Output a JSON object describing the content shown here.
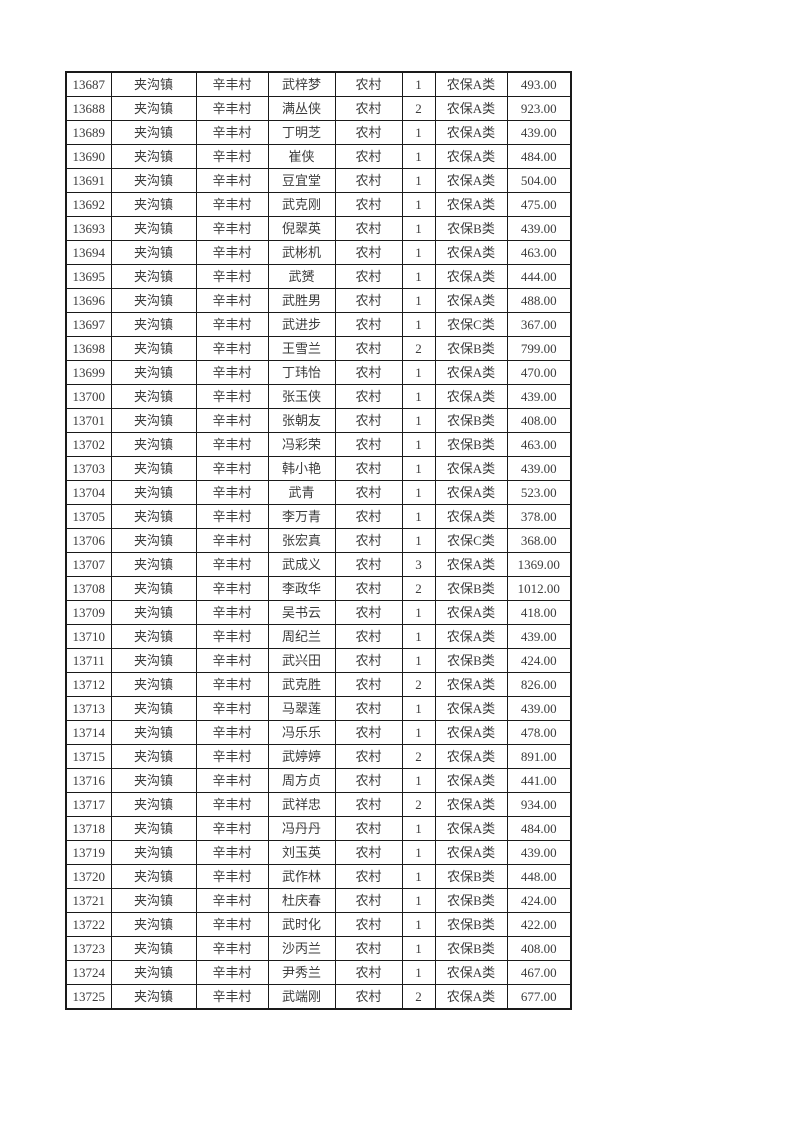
{
  "page": {
    "background": "#ffffff",
    "text_color": "#3b3b3b",
    "border_color": "#1a1a1a"
  },
  "table": {
    "columns": [
      {
        "key": "record-id"
      },
      {
        "key": "town"
      },
      {
        "key": "village"
      },
      {
        "key": "person-name"
      },
      {
        "key": "residence-type"
      },
      {
        "key": "person-count"
      },
      {
        "key": "insurance-category"
      },
      {
        "key": "amount"
      }
    ],
    "rows": [
      [
        "13687",
        "夹沟镇",
        "辛丰村",
        "武梓梦",
        "农村",
        "1",
        "农保A类",
        "493.00"
      ],
      [
        "13688",
        "夹沟镇",
        "辛丰村",
        "满丛侠",
        "农村",
        "2",
        "农保A类",
        "923.00"
      ],
      [
        "13689",
        "夹沟镇",
        "辛丰村",
        "丁明芝",
        "农村",
        "1",
        "农保A类",
        "439.00"
      ],
      [
        "13690",
        "夹沟镇",
        "辛丰村",
        "崔侠",
        "农村",
        "1",
        "农保A类",
        "484.00"
      ],
      [
        "13691",
        "夹沟镇",
        "辛丰村",
        "豆宜堂",
        "农村",
        "1",
        "农保A类",
        "504.00"
      ],
      [
        "13692",
        "夹沟镇",
        "辛丰村",
        "武克刚",
        "农村",
        "1",
        "农保A类",
        "475.00"
      ],
      [
        "13693",
        "夹沟镇",
        "辛丰村",
        "倪翠英",
        "农村",
        "1",
        "农保B类",
        "439.00"
      ],
      [
        "13694",
        "夹沟镇",
        "辛丰村",
        "武彬机",
        "农村",
        "1",
        "农保A类",
        "463.00"
      ],
      [
        "13695",
        "夹沟镇",
        "辛丰村",
        "武赟",
        "农村",
        "1",
        "农保A类",
        "444.00"
      ],
      [
        "13696",
        "夹沟镇",
        "辛丰村",
        "武胜男",
        "农村",
        "1",
        "农保A类",
        "488.00"
      ],
      [
        "13697",
        "夹沟镇",
        "辛丰村",
        "武进步",
        "农村",
        "1",
        "农保C类",
        "367.00"
      ],
      [
        "13698",
        "夹沟镇",
        "辛丰村",
        "王雪兰",
        "农村",
        "2",
        "农保B类",
        "799.00"
      ],
      [
        "13699",
        "夹沟镇",
        "辛丰村",
        "丁玮怡",
        "农村",
        "1",
        "农保A类",
        "470.00"
      ],
      [
        "13700",
        "夹沟镇",
        "辛丰村",
        "张玉侠",
        "农村",
        "1",
        "农保A类",
        "439.00"
      ],
      [
        "13701",
        "夹沟镇",
        "辛丰村",
        "张朝友",
        "农村",
        "1",
        "农保B类",
        "408.00"
      ],
      [
        "13702",
        "夹沟镇",
        "辛丰村",
        "冯彩荣",
        "农村",
        "1",
        "农保B类",
        "463.00"
      ],
      [
        "13703",
        "夹沟镇",
        "辛丰村",
        "韩小艳",
        "农村",
        "1",
        "农保A类",
        "439.00"
      ],
      [
        "13704",
        "夹沟镇",
        "辛丰村",
        "武青",
        "农村",
        "1",
        "农保A类",
        "523.00"
      ],
      [
        "13705",
        "夹沟镇",
        "辛丰村",
        "李万青",
        "农村",
        "1",
        "农保A类",
        "378.00"
      ],
      [
        "13706",
        "夹沟镇",
        "辛丰村",
        "张宏真",
        "农村",
        "1",
        "农保C类",
        "368.00"
      ],
      [
        "13707",
        "夹沟镇",
        "辛丰村",
        "武成义",
        "农村",
        "3",
        "农保A类",
        "1369.00"
      ],
      [
        "13708",
        "夹沟镇",
        "辛丰村",
        "李政华",
        "农村",
        "2",
        "农保B类",
        "1012.00"
      ],
      [
        "13709",
        "夹沟镇",
        "辛丰村",
        "吴书云",
        "农村",
        "1",
        "农保A类",
        "418.00"
      ],
      [
        "13710",
        "夹沟镇",
        "辛丰村",
        "周纪兰",
        "农村",
        "1",
        "农保A类",
        "439.00"
      ],
      [
        "13711",
        "夹沟镇",
        "辛丰村",
        "武兴田",
        "农村",
        "1",
        "农保B类",
        "424.00"
      ],
      [
        "13712",
        "夹沟镇",
        "辛丰村",
        "武克胜",
        "农村",
        "2",
        "农保A类",
        "826.00"
      ],
      [
        "13713",
        "夹沟镇",
        "辛丰村",
        "马翠莲",
        "农村",
        "1",
        "农保A类",
        "439.00"
      ],
      [
        "13714",
        "夹沟镇",
        "辛丰村",
        "冯乐乐",
        "农村",
        "1",
        "农保A类",
        "478.00"
      ],
      [
        "13715",
        "夹沟镇",
        "辛丰村",
        "武婷婷",
        "农村",
        "2",
        "农保A类",
        "891.00"
      ],
      [
        "13716",
        "夹沟镇",
        "辛丰村",
        "周方贞",
        "农村",
        "1",
        "农保A类",
        "441.00"
      ],
      [
        "13717",
        "夹沟镇",
        "辛丰村",
        "武祥忠",
        "农村",
        "2",
        "农保A类",
        "934.00"
      ],
      [
        "13718",
        "夹沟镇",
        "辛丰村",
        "冯丹丹",
        "农村",
        "1",
        "农保A类",
        "484.00"
      ],
      [
        "13719",
        "夹沟镇",
        "辛丰村",
        "刘玉英",
        "农村",
        "1",
        "农保A类",
        "439.00"
      ],
      [
        "13720",
        "夹沟镇",
        "辛丰村",
        "武作林",
        "农村",
        "1",
        "农保B类",
        "448.00"
      ],
      [
        "13721",
        "夹沟镇",
        "辛丰村",
        "杜庆春",
        "农村",
        "1",
        "农保B类",
        "424.00"
      ],
      [
        "13722",
        "夹沟镇",
        "辛丰村",
        "武时化",
        "农村",
        "1",
        "农保B类",
        "422.00"
      ],
      [
        "13723",
        "夹沟镇",
        "辛丰村",
        "沙丙兰",
        "农村",
        "1",
        "农保B类",
        "408.00"
      ],
      [
        "13724",
        "夹沟镇",
        "辛丰村",
        "尹秀兰",
        "农村",
        "1",
        "农保A类",
        "467.00"
      ],
      [
        "13725",
        "夹沟镇",
        "辛丰村",
        "武端刚",
        "农村",
        "2",
        "农保A类",
        "677.00"
      ]
    ]
  }
}
